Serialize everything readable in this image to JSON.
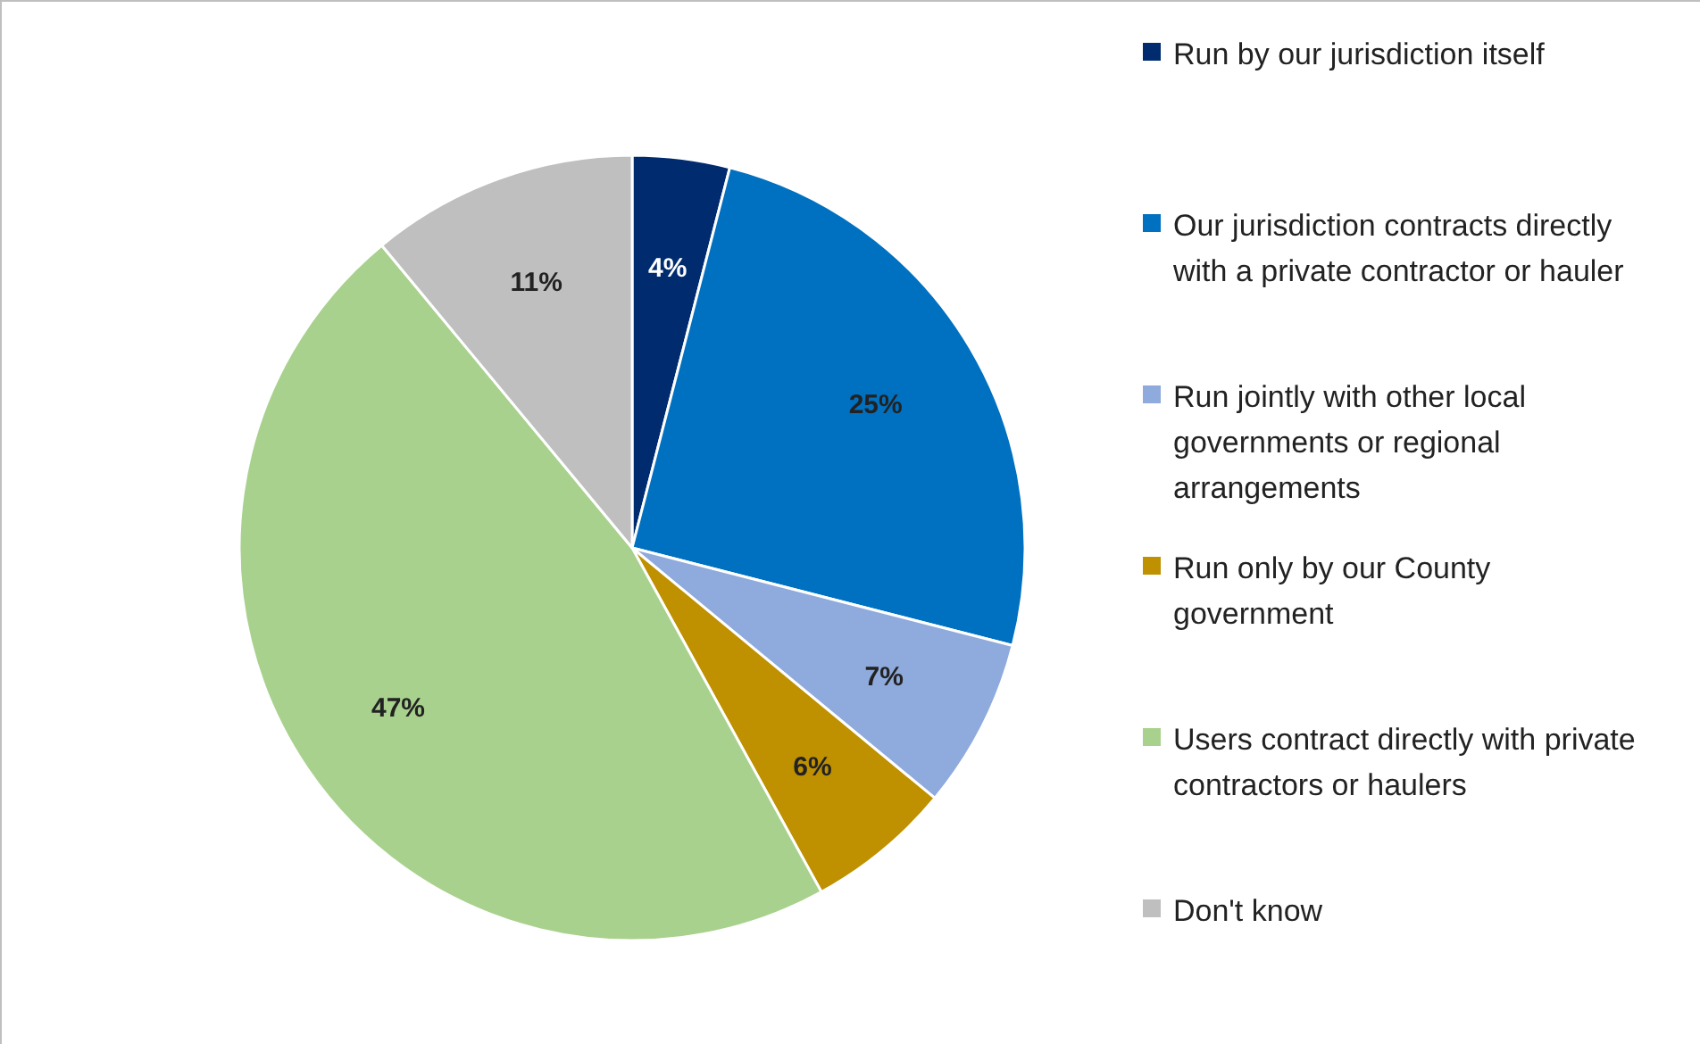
{
  "chart_data": {
    "type": "pie",
    "categories": [
      "Run by our jurisdiction itself",
      "Our jurisdiction contracts directly with a private contractor or hauler",
      "Run jointly with other local governments or regional arrangements",
      "Run only by our County government",
      "Users contract directly with private contractors or haulers",
      "Don't know"
    ],
    "values": [
      4,
      25,
      7,
      6,
      47,
      11
    ],
    "colors": [
      "#002b6f",
      "#0070c0",
      "#8faadc",
      "#bf9000",
      "#a9d18e",
      "#bfbfbf"
    ],
    "value_labels": [
      "4%",
      "25%",
      "7%",
      "6%",
      "47%",
      "11%"
    ],
    "legend": "right"
  }
}
